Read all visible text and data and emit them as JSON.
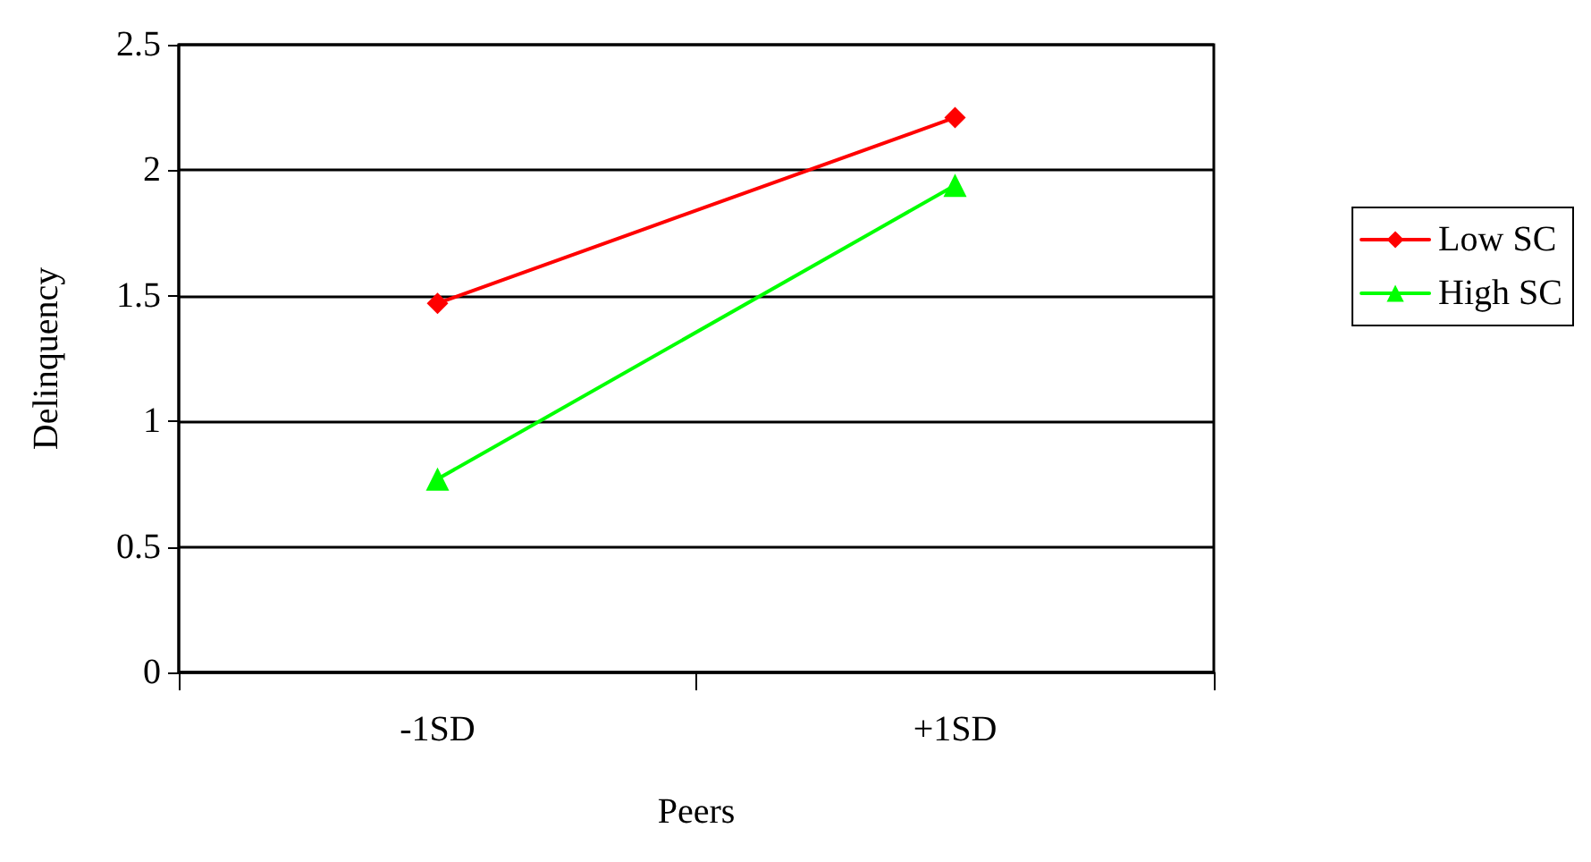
{
  "chart_data": {
    "type": "line",
    "xlabel": "Peers",
    "ylabel": "Delinquency",
    "categories": [
      "-1SD",
      "+1SD"
    ],
    "series": [
      {
        "name": "Low SC",
        "color": "#ff0000",
        "marker": "diamond",
        "values": [
          1.47,
          2.21
        ]
      },
      {
        "name": "High SC",
        "color": "#00ff00",
        "marker": "triangle",
        "values": [
          0.77,
          1.94
        ]
      }
    ],
    "ylim": [
      0,
      2.5
    ],
    "yticks": [
      0,
      0.5,
      1,
      1.5,
      2,
      2.5
    ],
    "grid": "y",
    "legend": "right",
    "line_style": "solid"
  }
}
